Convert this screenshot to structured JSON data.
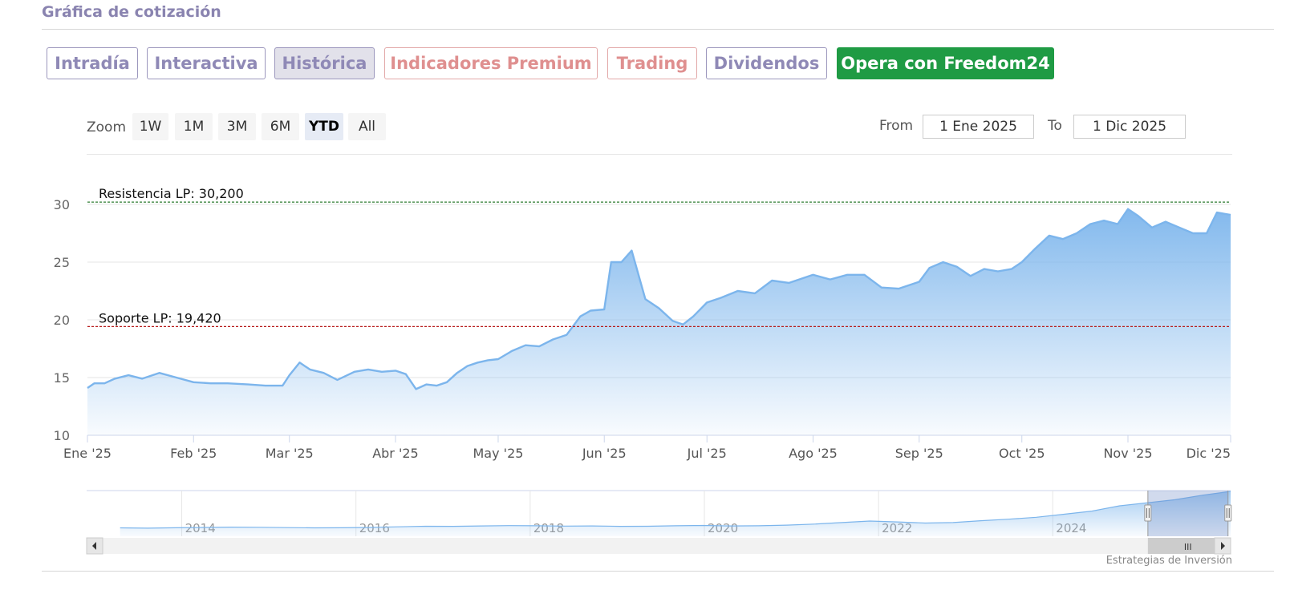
{
  "header": {
    "title": "Gráfica de cotización"
  },
  "tabs": [
    {
      "label": "Intradía",
      "style": "normal"
    },
    {
      "label": "Interactiva",
      "style": "normal"
    },
    {
      "label": "Histórica",
      "style": "active"
    },
    {
      "label": "Indicadores Premium",
      "style": "premium"
    },
    {
      "label": "Trading",
      "style": "premium"
    },
    {
      "label": "Dividendos",
      "style": "normal"
    },
    {
      "label": "Opera con Freedom24",
      "style": "cta"
    }
  ],
  "range_selector": {
    "zoom_label": "Zoom",
    "buttons": [
      "1W",
      "1M",
      "3M",
      "6M",
      "YTD",
      "All"
    ],
    "selected": "YTD",
    "from_label": "From",
    "from_value": "1 Ene 2025",
    "to_label": "To",
    "to_value": "1 Dic 2025"
  },
  "credit": "Estrategias de Inversión",
  "colors": {
    "series_line": "#7cb5ec",
    "resistance": "#2e7d32",
    "support": "#b71c1c",
    "tab_text": "#8f89b6",
    "premium_text": "#df8f8f",
    "cta_bg": "#1f9b44"
  },
  "chart_data": {
    "type": "area",
    "title": "",
    "xlabel": "",
    "ylabel": "",
    "ylim": [
      10,
      30
    ],
    "y_ticks": [
      10,
      15,
      20,
      25,
      30
    ],
    "x_ticks": [
      "Ene '25",
      "Feb '25",
      "Mar '25",
      "Abr '25",
      "May '25",
      "Jun '25",
      "Jul '25",
      "Ago '25",
      "Sep '25",
      "Oct '25",
      "Nov '25",
      "Dic '25"
    ],
    "grid": true,
    "x": [
      "2025-01-01",
      "2025-01-03",
      "2025-01-06",
      "2025-01-09",
      "2025-01-13",
      "2025-01-17",
      "2025-01-22",
      "2025-01-27",
      "2025-02-01",
      "2025-02-06",
      "2025-02-11",
      "2025-02-17",
      "2025-02-22",
      "2025-02-27",
      "2025-03-01",
      "2025-03-04",
      "2025-03-07",
      "2025-03-11",
      "2025-03-15",
      "2025-03-20",
      "2025-03-24",
      "2025-03-28",
      "2025-04-01",
      "2025-04-04",
      "2025-04-07",
      "2025-04-10",
      "2025-04-13",
      "2025-04-16",
      "2025-04-19",
      "2025-04-22",
      "2025-04-25",
      "2025-04-28",
      "2025-05-01",
      "2025-05-05",
      "2025-05-09",
      "2025-05-13",
      "2025-05-17",
      "2025-05-21",
      "2025-05-25",
      "2025-05-28",
      "2025-06-01",
      "2025-06-03",
      "2025-06-06",
      "2025-06-09",
      "2025-06-13",
      "2025-06-17",
      "2025-06-21",
      "2025-06-24",
      "2025-06-27",
      "2025-07-01",
      "2025-07-05",
      "2025-07-10",
      "2025-07-15",
      "2025-07-20",
      "2025-07-25",
      "2025-08-01",
      "2025-08-06",
      "2025-08-11",
      "2025-08-16",
      "2025-08-21",
      "2025-08-26",
      "2025-09-01",
      "2025-09-04",
      "2025-09-08",
      "2025-09-12",
      "2025-09-16",
      "2025-09-20",
      "2025-09-24",
      "2025-09-28",
      "2025-10-01",
      "2025-10-05",
      "2025-10-09",
      "2025-10-13",
      "2025-10-17",
      "2025-10-21",
      "2025-10-25",
      "2025-10-29",
      "2025-11-01",
      "2025-11-04",
      "2025-11-08",
      "2025-11-12",
      "2025-11-16",
      "2025-11-20",
      "2025-11-24",
      "2025-11-27",
      "2025-12-01"
    ],
    "series": [
      {
        "values": [
          14.1,
          14.5,
          14.5,
          14.9,
          15.2,
          14.9,
          15.4,
          15.0,
          14.6,
          14.5,
          14.5,
          14.4,
          14.3,
          14.3,
          15.2,
          16.3,
          15.7,
          15.4,
          14.8,
          15.5,
          15.7,
          15.5,
          15.6,
          15.3,
          14.0,
          14.4,
          14.3,
          14.6,
          15.4,
          16.0,
          16.3,
          16.5,
          16.6,
          17.3,
          17.8,
          17.7,
          18.3,
          18.7,
          20.3,
          20.8,
          20.9,
          25.0,
          25.0,
          26.0,
          21.8,
          21.0,
          19.9,
          19.6,
          20.3,
          21.5,
          21.9,
          22.5,
          22.3,
          23.4,
          23.2,
          23.9,
          23.5,
          23.9,
          23.9,
          22.8,
          22.7,
          23.3,
          24.5,
          25.0,
          24.6,
          23.8,
          24.4,
          24.2,
          24.4,
          25.0,
          26.2,
          27.3,
          27.0,
          27.5,
          28.3,
          28.6,
          28.3,
          29.6,
          29.0,
          28.0,
          28.5,
          28.0,
          27.5,
          27.5,
          29.3,
          29.1
        ]
      }
    ],
    "annotations": [
      {
        "label": "Resistencia LP: 30,200",
        "value": 30.2,
        "style": "dashed"
      },
      {
        "label": "Soporte LP: 19,420",
        "value": 19.42,
        "style": "dashed"
      }
    ],
    "navigator": {
      "year_labels": [
        "2014",
        "2016",
        "2018",
        "2020",
        "2022",
        "2024"
      ],
      "years": [
        2014,
        2016,
        2018,
        2020,
        2022,
        2024
      ],
      "x_start_year": 2013.0,
      "x_end_year": 2025.95,
      "selection_start_year": 2025.0,
      "selection_end_year": 2025.92,
      "values": [
        5.5,
        5.3,
        5.6,
        5.8,
        6.0,
        5.9,
        5.7,
        5.5,
        5.6,
        5.8,
        6.2,
        6.6,
        6.5,
        6.8,
        7.0,
        6.9,
        6.7,
        6.8,
        6.5,
        6.6,
        6.9,
        7.1,
        6.8,
        6.9,
        7.3,
        8.0,
        9.0,
        10.0,
        9.4,
        8.7,
        9.0,
        10.2,
        11.2,
        12.5,
        14.5,
        16.5,
        20.0,
        22.0,
        24.0,
        27.0,
        29.5
      ],
      "scroll_thumb_label": "III"
    }
  }
}
